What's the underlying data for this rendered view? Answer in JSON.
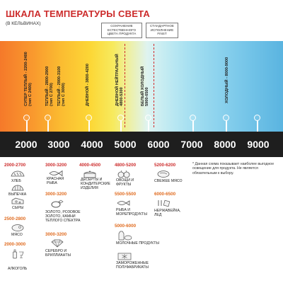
{
  "header": {
    "title": "ШКАЛА ТЕМПЕРАТУРЫ СВЕТА",
    "subtitle": "(В КЕЛЬВИНАХ)"
  },
  "notes": {
    "natural_color": "СОХРАНЕНИЕ ЕСТЕСТВЕННОГО ЦВЕТА ПРОДУКТА",
    "standard_finst": "СТАНДАРТНОЕ ИСПОЛНЕНИЕ FINST"
  },
  "ranges": [
    {
      "line1": "СУПЕР ТЕПЛЫЙ - 2200-2400",
      "line2": "(тип C 2400)"
    },
    {
      "line1": "ТЕПЛЫЙ - 2800-2900",
      "line2": "(тип C 2700)"
    },
    {
      "line1": "ТЕПЛЫЙ - 2900-3100",
      "line2": "(тип C 3000)"
    },
    {
      "line1": "ДНЕВНОЙ - 3800-4200",
      "line2": ""
    },
    {
      "line1": "ДНЕВНОЙ НЕЙТРАЛЬНЫЙ",
      "line2": "4800-5300"
    },
    {
      "line1": "БЕЛЫЙ ХОЛОДНЫЙ",
      "line2": "5900-6500"
    },
    {
      "line1": "ХОЛОДНЫЙ - 8000-9000",
      "line2": ""
    }
  ],
  "scale": {
    "ticks": [
      "2000",
      "3000",
      "4000",
      "5000",
      "6000",
      "7000",
      "8000",
      "9000"
    ]
  },
  "categories": {
    "c2000": {
      "range": "2000-2700",
      "items": [
        "ХЛЕБ",
        "ВЫПЕЧКА",
        "СЫРЫ"
      ]
    },
    "c2500": {
      "range": "2500-2800",
      "items": [
        "МЯСО"
      ]
    },
    "c2000b": {
      "range": "2000-3000",
      "items": [
        "АЛКОГОЛЬ"
      ]
    },
    "c3000a": {
      "range": "3000-3200",
      "items": [
        "КРАСНАЯ РЫБА"
      ]
    },
    "c3000b": {
      "range": "3000-3200",
      "items": [
        "ЗОЛОТО, РОЗОВОЕ ЗОЛОТО, КАМНИ ТЕПЛОГО СПЕКТРА"
      ]
    },
    "c3000c": {
      "range": "3000-3200",
      "items": [
        "СЕРЕБРО И БРИЛЛИАНТЫ"
      ]
    },
    "c4000": {
      "range": "4000-4500",
      "items": [
        "ДЕСЕРТЫ И КОНДИТЕРСКИЕ ИЗДЕЛИЯ"
      ]
    },
    "c4800": {
      "range": "4800-5200",
      "items": [
        "ОВОЩИ И ФРУКТЫ"
      ]
    },
    "c5500": {
      "range": "5500-5500",
      "items": [
        "РЫБА И МОРЕПРОДУКТЫ"
      ]
    },
    "c5000": {
      "range": "5000-6000",
      "items": [
        "МОЛОЧНЫЕ ПРОДУКТЫ",
        "ЗАМОРОЖЕННЫЕ ПОЛУФАБРИКАТЫ"
      ]
    },
    "c5200": {
      "range": "5200-6200",
      "items": [
        "СВЕЖЕЕ МЯСО"
      ]
    },
    "c6000": {
      "range": "6000-6500",
      "items": [
        "НЕРЖАВЕЙКА, ЛЕД"
      ]
    }
  },
  "footnote": "* Данная схема показывает наиболее выгодное освещение для продукта. Не является обязательным к выбору."
}
